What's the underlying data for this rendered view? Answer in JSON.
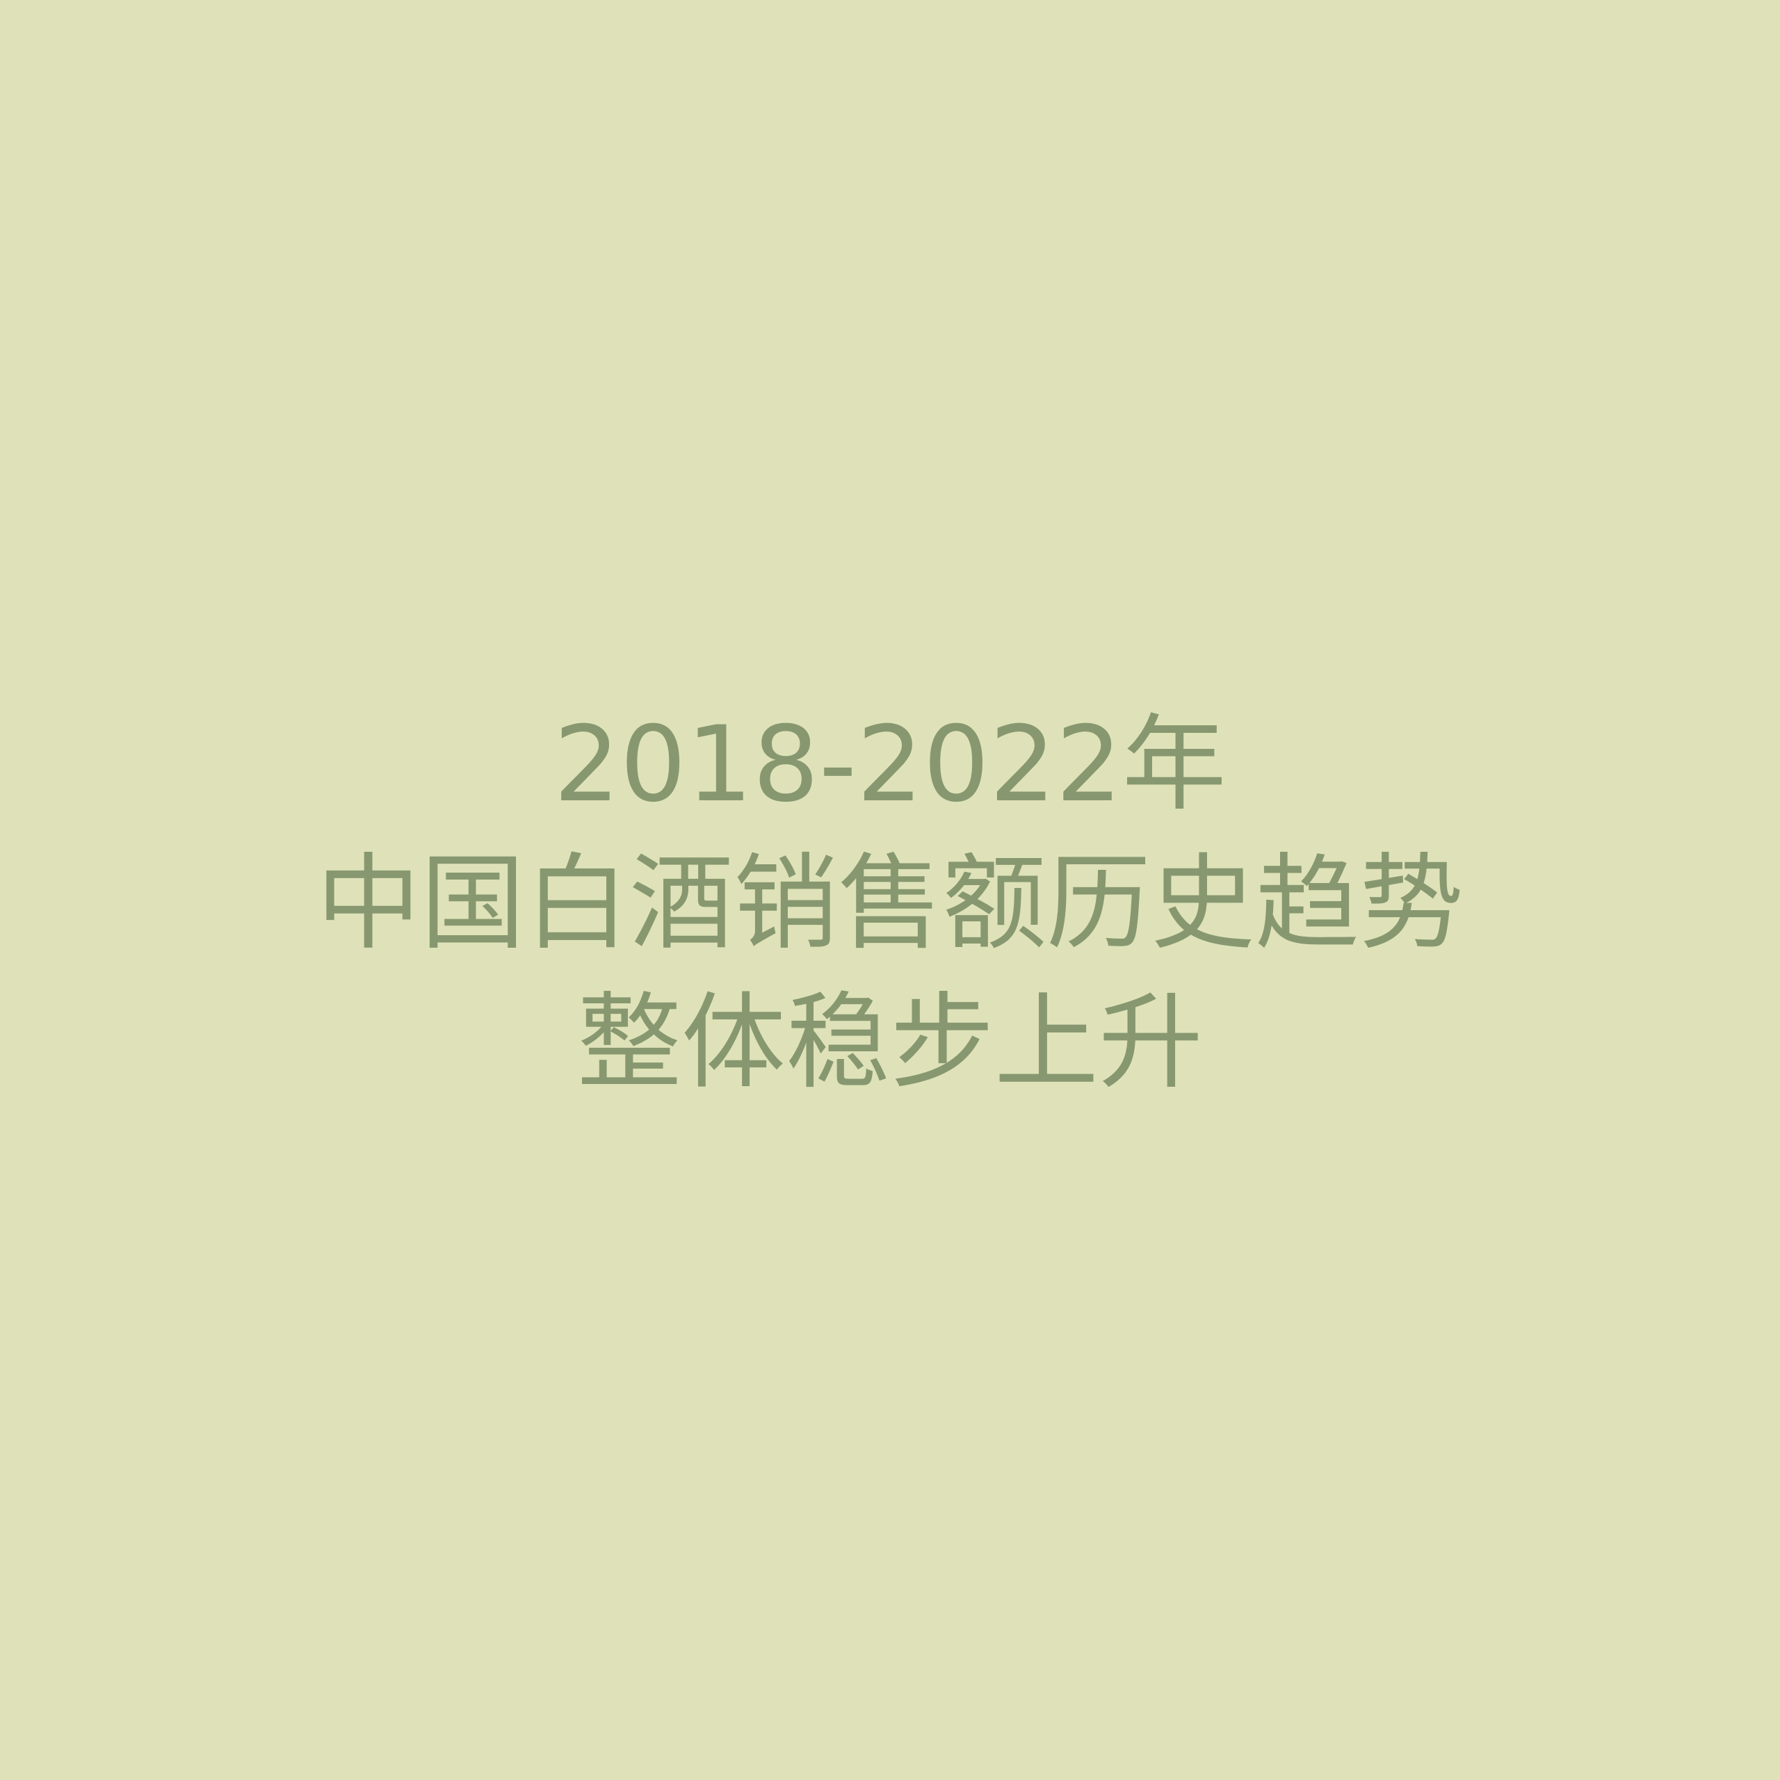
{
  "headline": {
    "line1": "2018-2022年",
    "line2": "中国白酒销售额历史趋势",
    "line3": "整体稳步上升"
  },
  "colors": {
    "background": "#dfe2b8",
    "text": "#879870"
  }
}
